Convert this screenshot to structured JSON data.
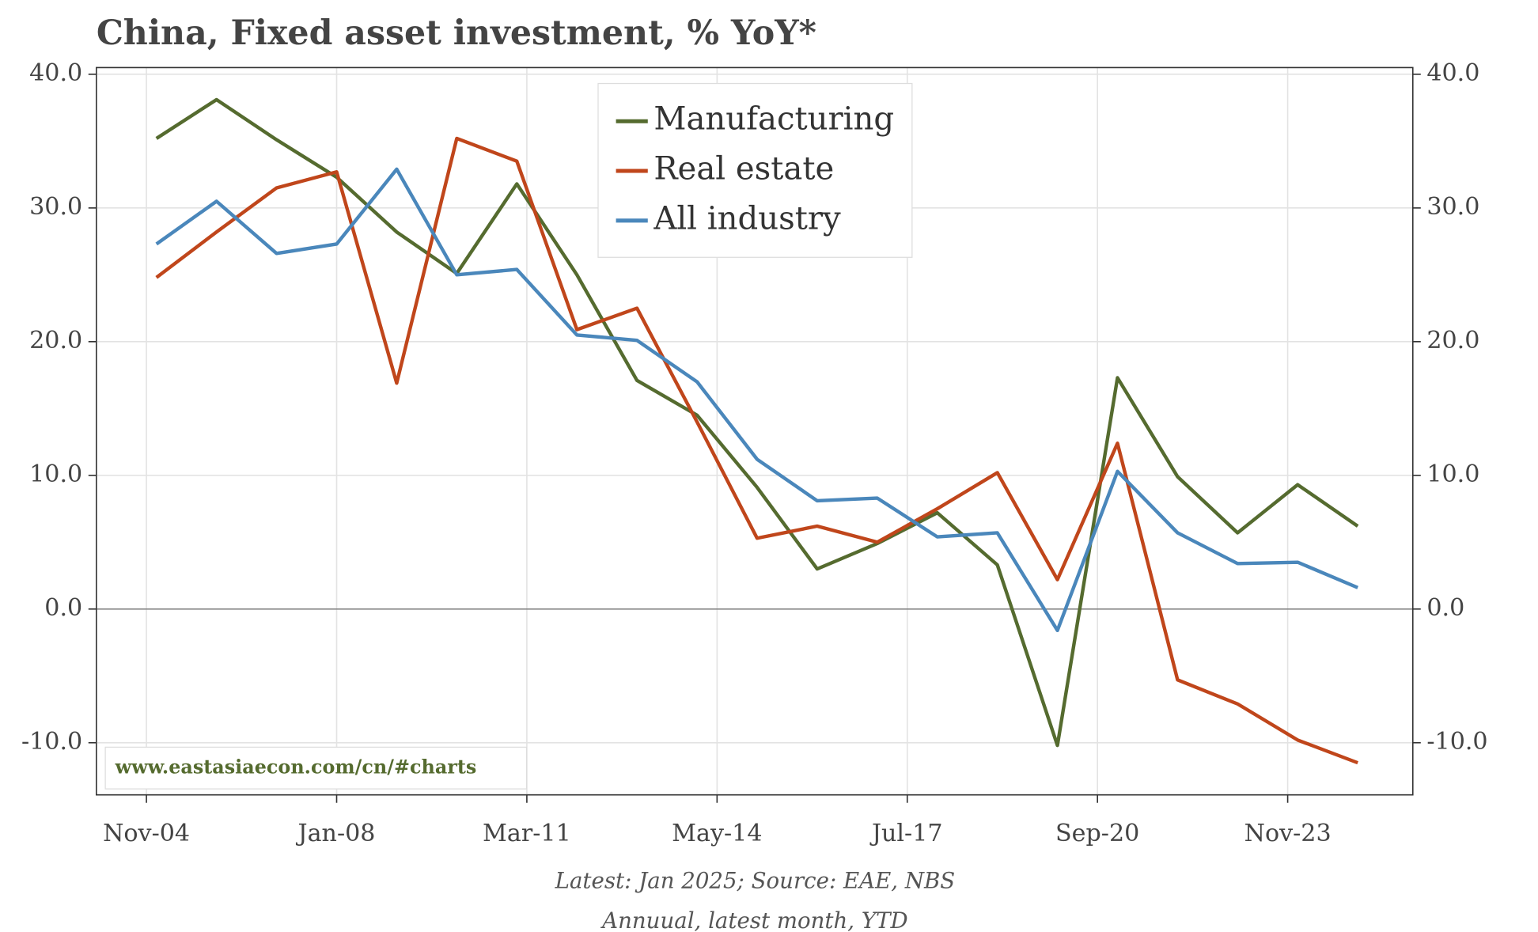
{
  "chart_data": {
    "type": "line",
    "title": "China, Fixed asset investment, % YoY*",
    "source": "Latest: Jan 2025; Source: EAE, NBS",
    "note": "Annuual, latest month, YTD",
    "watermark": "www.eastasiaecon.com/cn/#charts",
    "x": [
      "Jan-05",
      "Jan-06",
      "Jan-07",
      "Jan-08",
      "Jan-09",
      "Jan-10",
      "Jan-11",
      "Jan-12",
      "Jan-13",
      "Jan-14",
      "Jan-15",
      "Jan-16",
      "Jan-17",
      "Jan-18",
      "Jan-19",
      "Jan-20",
      "Jan-21",
      "Jan-22",
      "Jan-23",
      "Jan-24",
      "Jan-25"
    ],
    "series": [
      {
        "name": "Manufacturing",
        "color": "#556b2f",
        "values": [
          35.2,
          38.1,
          35.1,
          32.3,
          28.2,
          25.1,
          31.8,
          25.0,
          17.1,
          14.5,
          9.1,
          3.0,
          4.9,
          7.2,
          3.3,
          -10.2,
          17.3,
          9.9,
          5.7,
          9.3,
          6.2
        ]
      },
      {
        "name": "Real estate",
        "color": "#c0461b",
        "values": [
          24.8,
          28.2,
          31.5,
          32.7,
          16.9,
          35.2,
          33.5,
          20.9,
          22.5,
          14.0,
          5.3,
          6.2,
          5.0,
          7.5,
          10.2,
          2.2,
          12.4,
          -5.3,
          -7.1,
          -9.8,
          -11.5
        ]
      },
      {
        "name": "All industry",
        "color": "#4a87bb",
        "values": [
          27.3,
          30.5,
          26.6,
          27.3,
          32.9,
          25.0,
          25.4,
          20.5,
          20.1,
          17.0,
          11.2,
          8.1,
          8.3,
          5.4,
          5.7,
          -1.6,
          10.3,
          5.7,
          3.4,
          3.5,
          1.6
        ]
      }
    ],
    "xlim": [
      "Jan-04",
      "Dec-25"
    ],
    "xticks": [
      "Nov-04",
      "Jan-08",
      "Mar-11",
      "May-14",
      "Jul-17",
      "Sep-20",
      "Nov-23"
    ],
    "ylim": [
      -13.9,
      40.5
    ],
    "yticks": [
      {
        "value": -10,
        "label": "-10.0"
      },
      {
        "value": 0,
        "label": "0.0"
      },
      {
        "value": 10,
        "label": "10.0"
      },
      {
        "value": 20,
        "label": "20.0"
      },
      {
        "value": 30,
        "label": "30.0"
      },
      {
        "value": 40,
        "label": "40.0"
      }
    ],
    "grid": true,
    "legend": "top"
  }
}
